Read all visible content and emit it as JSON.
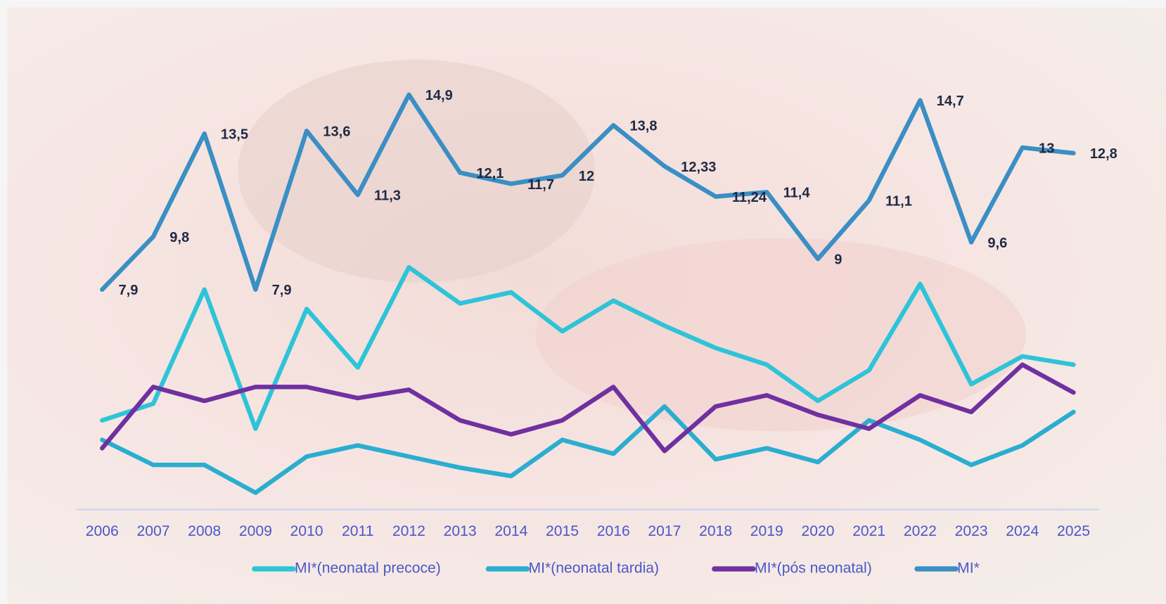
{
  "chart_data": {
    "type": "line",
    "categories": [
      "2006",
      "2007",
      "2008",
      "2009",
      "2010",
      "2011",
      "2012",
      "2013",
      "2014",
      "2015",
      "2016",
      "2017",
      "2018",
      "2019",
      "2020",
      "2021",
      "2022",
      "2023",
      "2024",
      "2025"
    ],
    "ylim": [
      0,
      16
    ],
    "legend": "bottom",
    "series": [
      {
        "name": "MI*(neonatal precoce)",
        "color": "#2ec4d8",
        "values": [
          3.2,
          3.8,
          7.9,
          2.9,
          7.2,
          5.1,
          8.7,
          7.4,
          7.8,
          6.4,
          7.5,
          6.6,
          5.8,
          5.2,
          3.9,
          5.0,
          8.1,
          4.5,
          5.5,
          5.2
        ]
      },
      {
        "name": "MI*(neonatal tardia)",
        "color": "#2aaed0",
        "values": [
          2.5,
          1.6,
          1.6,
          0.6,
          1.9,
          2.3,
          1.9,
          1.5,
          1.2,
          2.5,
          2.0,
          3.7,
          1.8,
          2.2,
          1.7,
          3.2,
          2.5,
          1.6,
          2.3,
          3.5
        ]
      },
      {
        "name": "MI*(pós neonatal)",
        "color": "#7030a0",
        "values": [
          2.2,
          4.4,
          3.9,
          4.4,
          4.4,
          4.0,
          4.3,
          3.2,
          2.7,
          3.2,
          4.4,
          2.1,
          3.7,
          4.1,
          3.4,
          2.9,
          4.1,
          3.5,
          5.2,
          4.2
        ]
      },
      {
        "name": "MI*",
        "color": "#3a8fc4",
        "values": [
          7.9,
          9.8,
          13.5,
          7.9,
          13.6,
          11.3,
          14.9,
          12.1,
          11.7,
          12,
          13.8,
          12.33,
          11.24,
          11.4,
          9,
          11.1,
          14.7,
          9.6,
          13,
          12.8
        ],
        "value_labels": [
          "7,9",
          "9,8",
          "13,5",
          "7,9",
          "13,6",
          "11,3",
          "14,9",
          "12,1",
          "11,7",
          "12",
          "13,8",
          "12,33",
          "11,24",
          "11,4",
          "9",
          "11,1",
          "14,7",
          "9,6",
          "13",
          "12,8"
        ]
      }
    ]
  }
}
